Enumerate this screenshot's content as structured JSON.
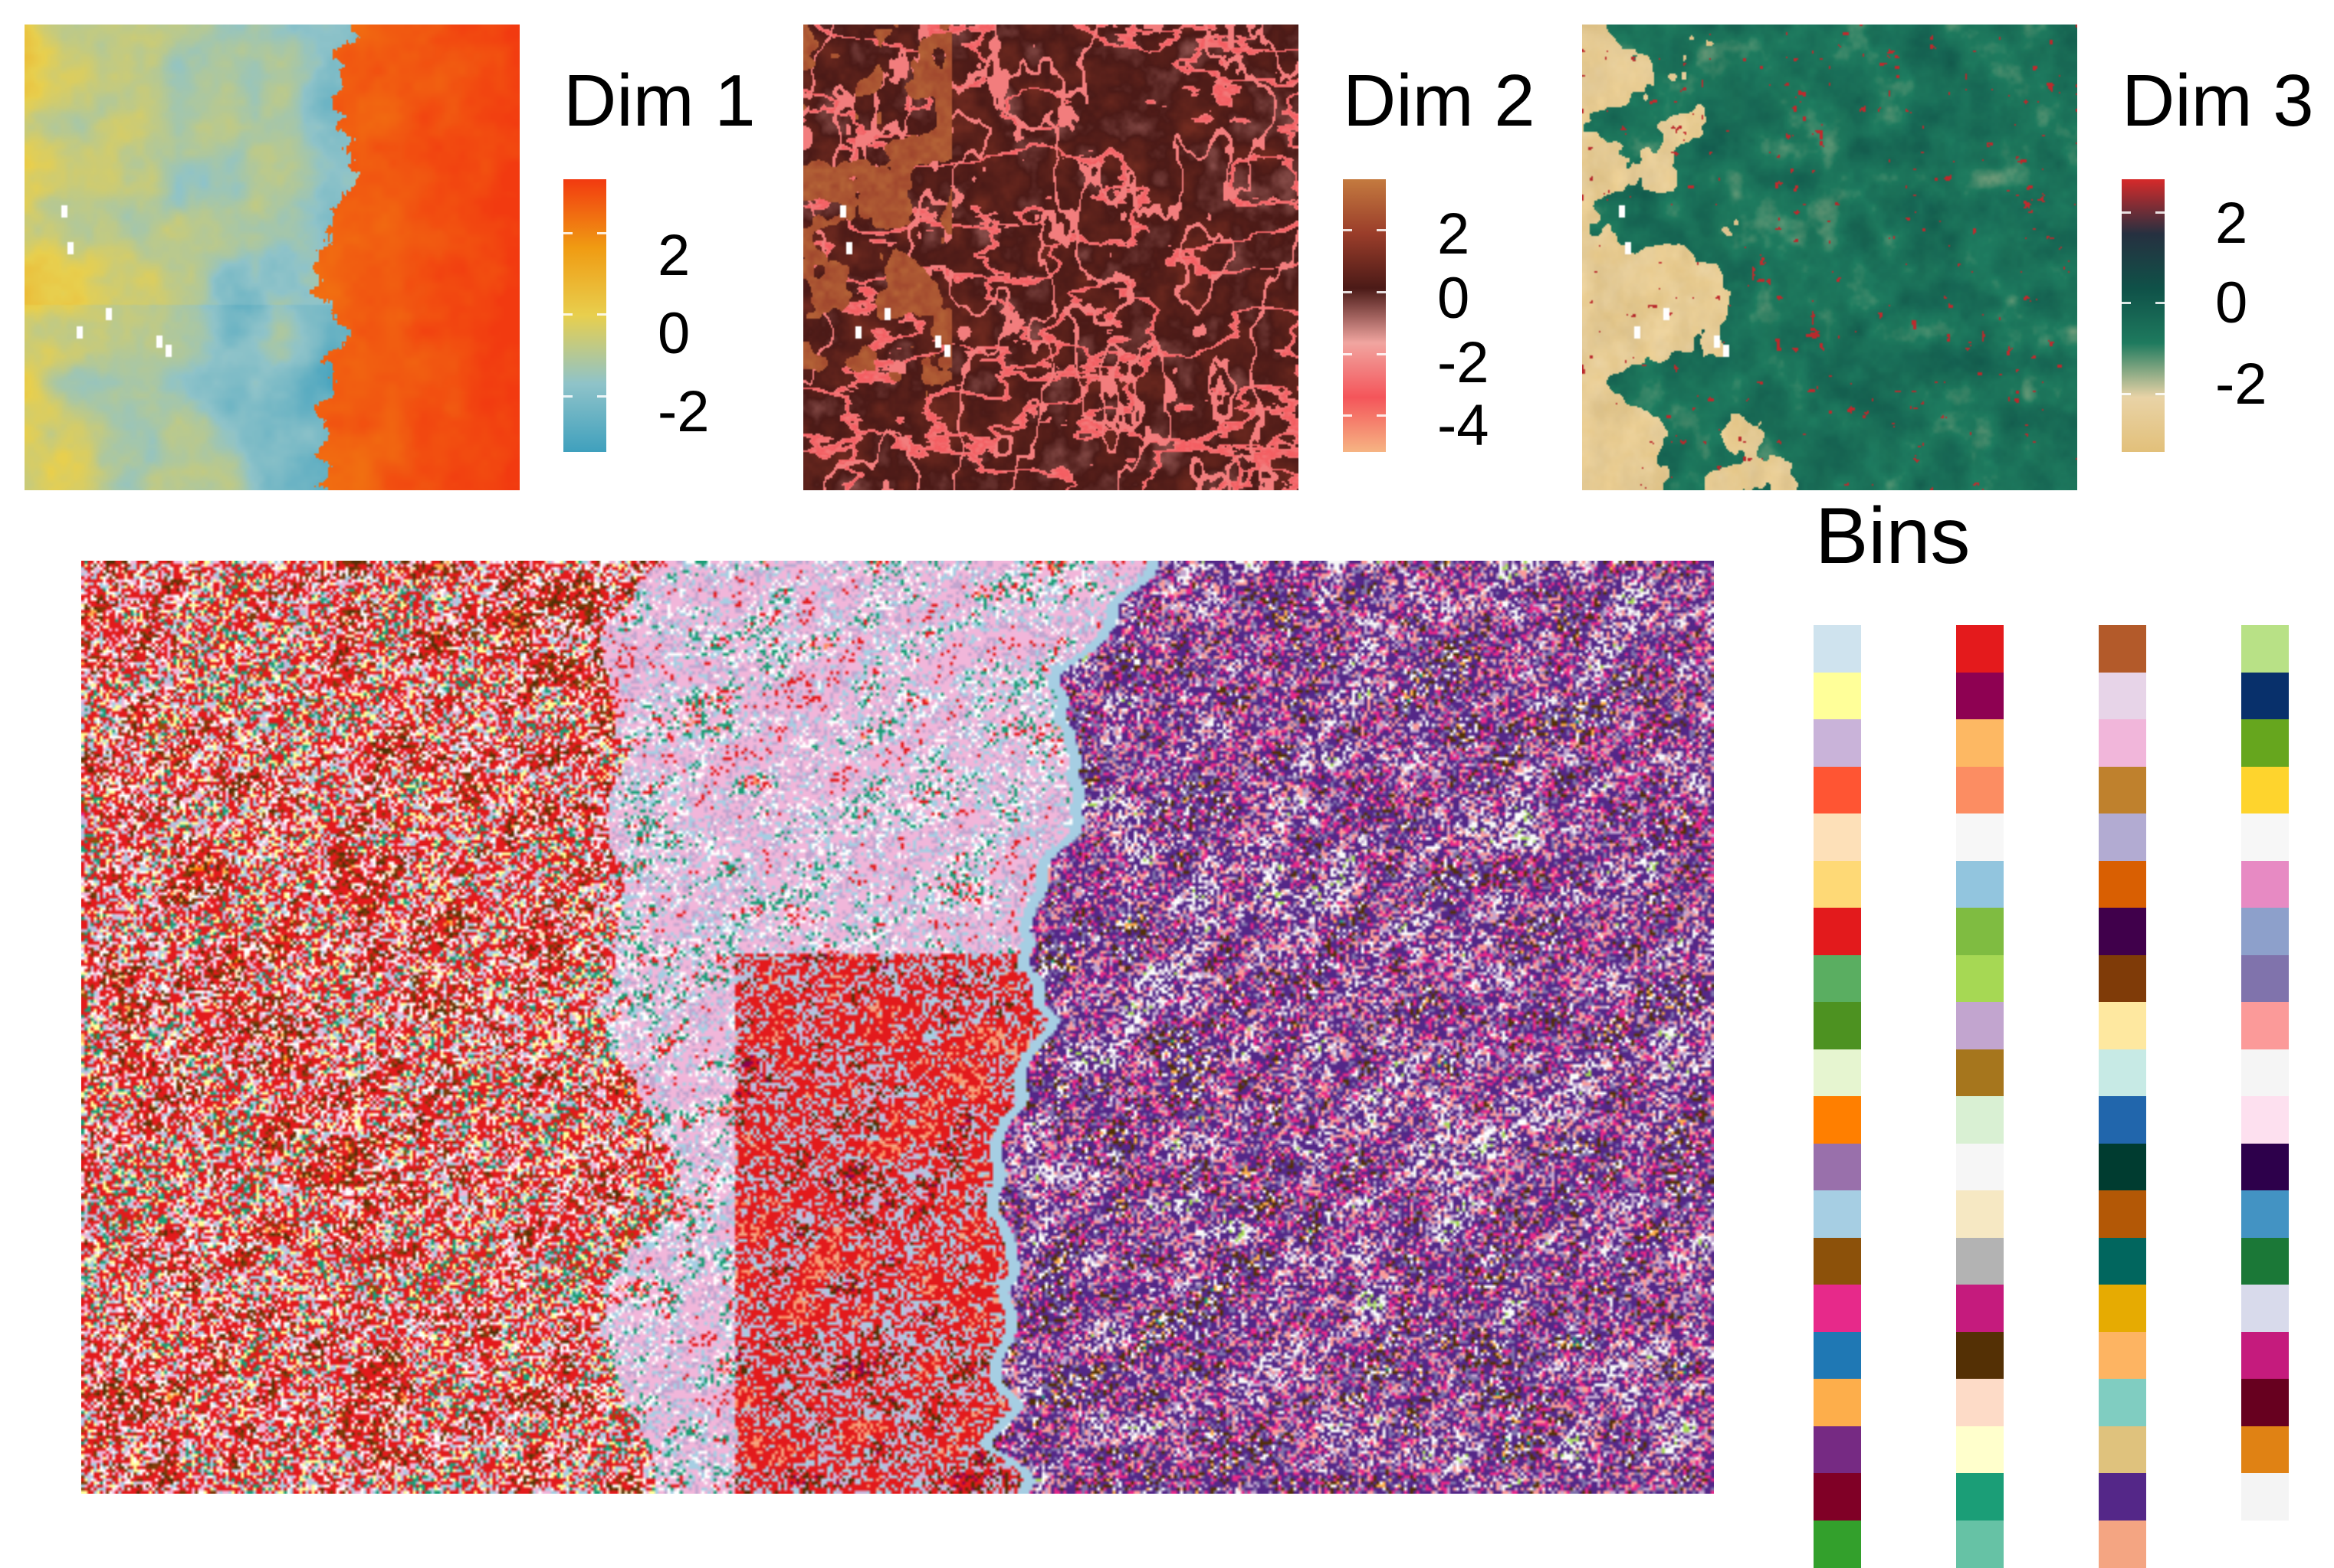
{
  "panels": [
    {
      "title": "Dim 1",
      "legend": {
        "ticks": [
          "2",
          "0",
          "-2"
        ],
        "range": [
          -3.4,
          3.3
        ],
        "colors": [
          "#3fa0bd",
          "#8fc3c9",
          "#e8cf4e",
          "#f09b12",
          "#f23a10"
        ]
      }
    },
    {
      "title": "Dim 2",
      "legend": {
        "ticks": [
          "2",
          "0",
          "-2",
          "-4"
        ],
        "range": [
          -5.2,
          3.6
        ],
        "colors": [
          "#f6b483",
          "#f4555a",
          "#f1a5a0",
          "#4b1a17",
          "#9a3d2a",
          "#c47a3f"
        ]
      }
    },
    {
      "title": "Dim 3",
      "legend": {
        "ticks": [
          "2",
          "0",
          "-2"
        ],
        "range": [
          -3.3,
          2.7
        ],
        "colors": [
          "#e2c07a",
          "#e9d3a6",
          "#1e7a5e",
          "#0f5148",
          "#263040",
          "#d62a2a"
        ]
      }
    }
  ],
  "bins": {
    "title": "Bins",
    "columns": [
      [
        "#cfe3ee",
        "#ffff99",
        "#c9b3d9",
        "#ff5533",
        "#fde0b8",
        "#fed976",
        "#e31a1c",
        "#5aae61",
        "#4d9221",
        "#e6f5d0",
        "#ff7f00",
        "#9970ab",
        "#a6cee3",
        "#8c510a",
        "#e7298a",
        "#1f78b4",
        "#fdae4b",
        "#762a83",
        "#800026",
        "#33a02c"
      ],
      [
        "#e41a1c",
        "#8e0152",
        "#fdb863",
        "#fc8d62",
        "#f7f7f7",
        "#92c5de",
        "#7fbc41",
        "#a6d854",
        "#c2a5cf",
        "#a6761d",
        "#d9f0d3",
        "#f6f6f6",
        "#f6e8c3",
        "#b3b3b3",
        "#c51b7d",
        "#543005",
        "#fddbc7",
        "#ffffcc",
        "#1b9e77",
        "#66c2a5"
      ],
      [
        "#b35a2a",
        "#e7d4e8",
        "#f1b6da",
        "#bf812d",
        "#b2abd2",
        "#d95f02",
        "#40004b",
        "#7f3b08",
        "#fee8a0",
        "#c7eae5",
        "#2166ac",
        "#003c30",
        "#b35806",
        "#01665e",
        "#e6ab02",
        "#fdb462",
        "#80cdc1",
        "#dfc27d",
        "#542788",
        "#f4a582"
      ],
      [
        "#b8e186",
        "#08306b",
        "#66a61e",
        "#fed42d",
        "#f7f7f7",
        "#e78ac3",
        "#8da0cb",
        "#8073ac",
        "#fb9a99",
        "#f5f5f5",
        "#fde0ef",
        "#2d004b",
        "#4393c3",
        "#1b7837",
        "#d8daeb",
        "#c51b7d",
        "#67001f",
        "#e08214",
        "#f4f4f4",
        "#ffffff"
      ]
    ],
    "map_palette_weights": {
      "west": [
        "#e31a1c",
        "#1f78b4",
        "#ff7f00",
        "#fdae4b",
        "#fde0b8",
        "#543005",
        "#7f3b08",
        "#ffffff",
        "#f1b6da",
        "#a6cee3",
        "#ffff99",
        "#1b9e77",
        "#c9b3d9",
        "#8c510a",
        "#fdb863",
        "#e7298a"
      ],
      "center": [
        "#f1b6da",
        "#c9b3d9",
        "#b2abd2",
        "#e31a1c",
        "#f1b6da",
        "#c2a5cf",
        "#a6cee3",
        "#ffffff",
        "#1b9e77",
        "#e41a1c",
        "#fc8d62",
        "#e7d4e8"
      ],
      "south_center": [
        "#e31a1c",
        "#e41a1c",
        "#fc8d62",
        "#f4a582",
        "#e31a1c",
        "#a6cee3",
        "#c9b3d9",
        "#543005",
        "#8e0152",
        "#fdb863"
      ],
      "east": [
        "#542788",
        "#762a83",
        "#b8e186",
        "#a6d854",
        "#ffffff",
        "#f7f7f7",
        "#c2a5cf",
        "#fb9a99",
        "#e7298a",
        "#8073ac",
        "#543005",
        "#ffffff",
        "#fdae4b",
        "#1b9e77",
        "#ffffff"
      ]
    }
  }
}
